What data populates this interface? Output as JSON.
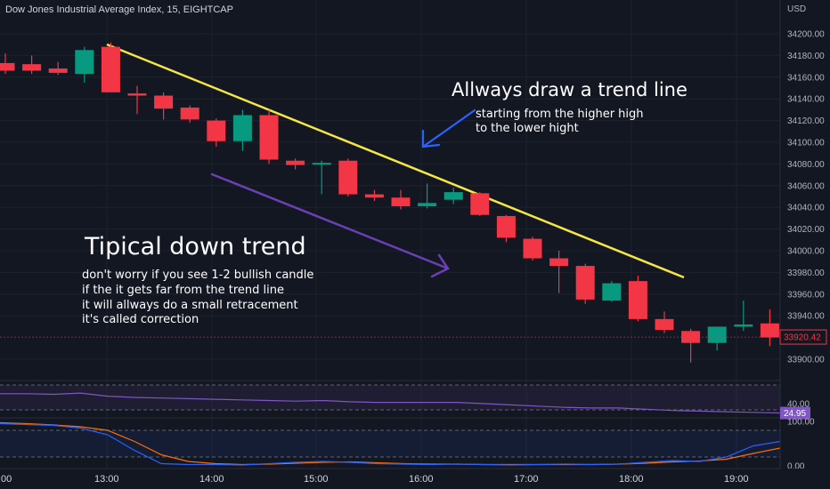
{
  "header": {
    "title": "Dow Jones Industrial Average Index, 15, EIGHTCAP",
    "currency": "USD"
  },
  "colors": {
    "background": "#131722",
    "bull": "#089981",
    "bear": "#f23645",
    "trend_line": "#f5e642",
    "arrow_purple": "#6b3fb5",
    "arrow_blue": "#2962ff",
    "rsi_line": "#7e57c2",
    "stoch_k": "#2962ff",
    "stoch_d": "#ff6d00",
    "price_tag": "#f23645",
    "rsi_tag": "#7e57c2"
  },
  "price_axis": {
    "ticks": [
      "34200.00",
      "34180.00",
      "34160.00",
      "34140.00",
      "34120.00",
      "34100.00",
      "34080.00",
      "34060.00",
      "34040.00",
      "34020.00",
      "34000.00",
      "33980.00",
      "33960.00",
      "33940.00",
      "33900.00"
    ],
    "current_price": "33920.42"
  },
  "rsi_axis": {
    "ticks": [
      "40.00"
    ],
    "current_value": "24.95"
  },
  "stoch_axis": {
    "ticks": [
      "100.00",
      "0.00"
    ]
  },
  "time_axis": {
    "labels": [
      ":00",
      "13:00",
      "14:00",
      "15:00",
      "16:00",
      "17:00",
      "18:00",
      "19:00"
    ]
  },
  "annotations": {
    "trend_title": "Allways draw a trend line",
    "trend_line1": "starting from the higher high",
    "trend_line2": "to the lower hight",
    "down_title": "Tipical down trend",
    "note1": "don't worry if you see 1-2 bullish candle",
    "note2": "if the it gets far from the trend line",
    "note3": "it will allways do a small retracement",
    "note4": "it's called correction"
  },
  "chart_data": {
    "type": "candlestick",
    "symbol": "Dow Jones Industrial Average Index",
    "timeframe": "15",
    "ylim": [
      33890,
      34215
    ],
    "candles": [
      {
        "o": 34173,
        "h": 34182,
        "l": 34163,
        "c": 34166
      },
      {
        "o": 34172,
        "h": 34180,
        "l": 34163,
        "c": 34166
      },
      {
        "o": 34168,
        "h": 34174,
        "l": 34162,
        "c": 34164
      },
      {
        "o": 34163,
        "h": 34188,
        "l": 34155,
        "c": 34185
      },
      {
        "o": 34188,
        "h": 34192,
        "l": 34148,
        "c": 34146
      },
      {
        "o": 34145,
        "h": 34152,
        "l": 34126,
        "c": 34143
      },
      {
        "o": 34143,
        "h": 34146,
        "l": 34121,
        "c": 34131
      },
      {
        "o": 34132,
        "h": 34134,
        "l": 34118,
        "c": 34121
      },
      {
        "o": 34120,
        "h": 34122,
        "l": 34096,
        "c": 34101
      },
      {
        "o": 34101,
        "h": 34130,
        "l": 34092,
        "c": 34125
      },
      {
        "o": 34125,
        "h": 34130,
        "l": 34080,
        "c": 34084
      },
      {
        "o": 34083,
        "h": 34085,
        "l": 34075,
        "c": 34079
      },
      {
        "o": 34081,
        "h": 34083,
        "l": 34052,
        "c": 34081
      },
      {
        "o": 34083,
        "h": 34085,
        "l": 34050,
        "c": 34052
      },
      {
        "o": 34052,
        "h": 34056,
        "l": 34046,
        "c": 34049
      },
      {
        "o": 34049,
        "h": 34056,
        "l": 34038,
        "c": 34041
      },
      {
        "o": 34041,
        "h": 34062,
        "l": 34039,
        "c": 34044
      },
      {
        "o": 34047,
        "h": 34058,
        "l": 34043,
        "c": 34054
      },
      {
        "o": 34053,
        "h": 34054,
        "l": 34032,
        "c": 34033
      },
      {
        "o": 34032,
        "h": 34033,
        "l": 34008,
        "c": 34012
      },
      {
        "o": 34011,
        "h": 34013,
        "l": 33991,
        "c": 33993
      },
      {
        "o": 33993,
        "h": 34000,
        "l": 33961,
        "c": 33986
      },
      {
        "o": 33986,
        "h": 33988,
        "l": 33951,
        "c": 33955
      },
      {
        "o": 33954,
        "h": 33972,
        "l": 33953,
        "c": 33970
      },
      {
        "o": 33972,
        "h": 33977,
        "l": 33935,
        "c": 33937
      },
      {
        "o": 33937,
        "h": 33944,
        "l": 33924,
        "c": 33927
      },
      {
        "o": 33926,
        "h": 33928,
        "l": 33897,
        "c": 33915
      },
      {
        "o": 33915,
        "h": 33930,
        "l": 33908,
        "c": 33930
      },
      {
        "o": 33930,
        "h": 33954,
        "l": 33926,
        "c": 33932
      },
      {
        "o": 33933,
        "h": 33946,
        "l": 33912,
        "c": 33920
      }
    ],
    "rsi": [
      56,
      56,
      55,
      57,
      52,
      50,
      49,
      48,
      47,
      46,
      45,
      44,
      45,
      43,
      42,
      42,
      42,
      42,
      40,
      38,
      36,
      34,
      33,
      33,
      31,
      29,
      28,
      27,
      26,
      25
    ],
    "rsi_current": 24.95,
    "stoch_k": [
      95,
      93,
      91,
      85,
      70,
      35,
      5,
      3,
      3,
      2,
      5,
      8,
      10,
      8,
      5,
      4,
      3,
      4,
      3,
      2,
      3,
      4,
      3,
      4,
      8,
      12,
      10,
      20,
      45,
      55
    ],
    "stoch_d": [
      97,
      95,
      92,
      88,
      80,
      55,
      25,
      10,
      5,
      3,
      4,
      6,
      8,
      9,
      7,
      5,
      4,
      4,
      3,
      3,
      3,
      3,
      3,
      4,
      6,
      9,
      11,
      15,
      28,
      40
    ]
  }
}
